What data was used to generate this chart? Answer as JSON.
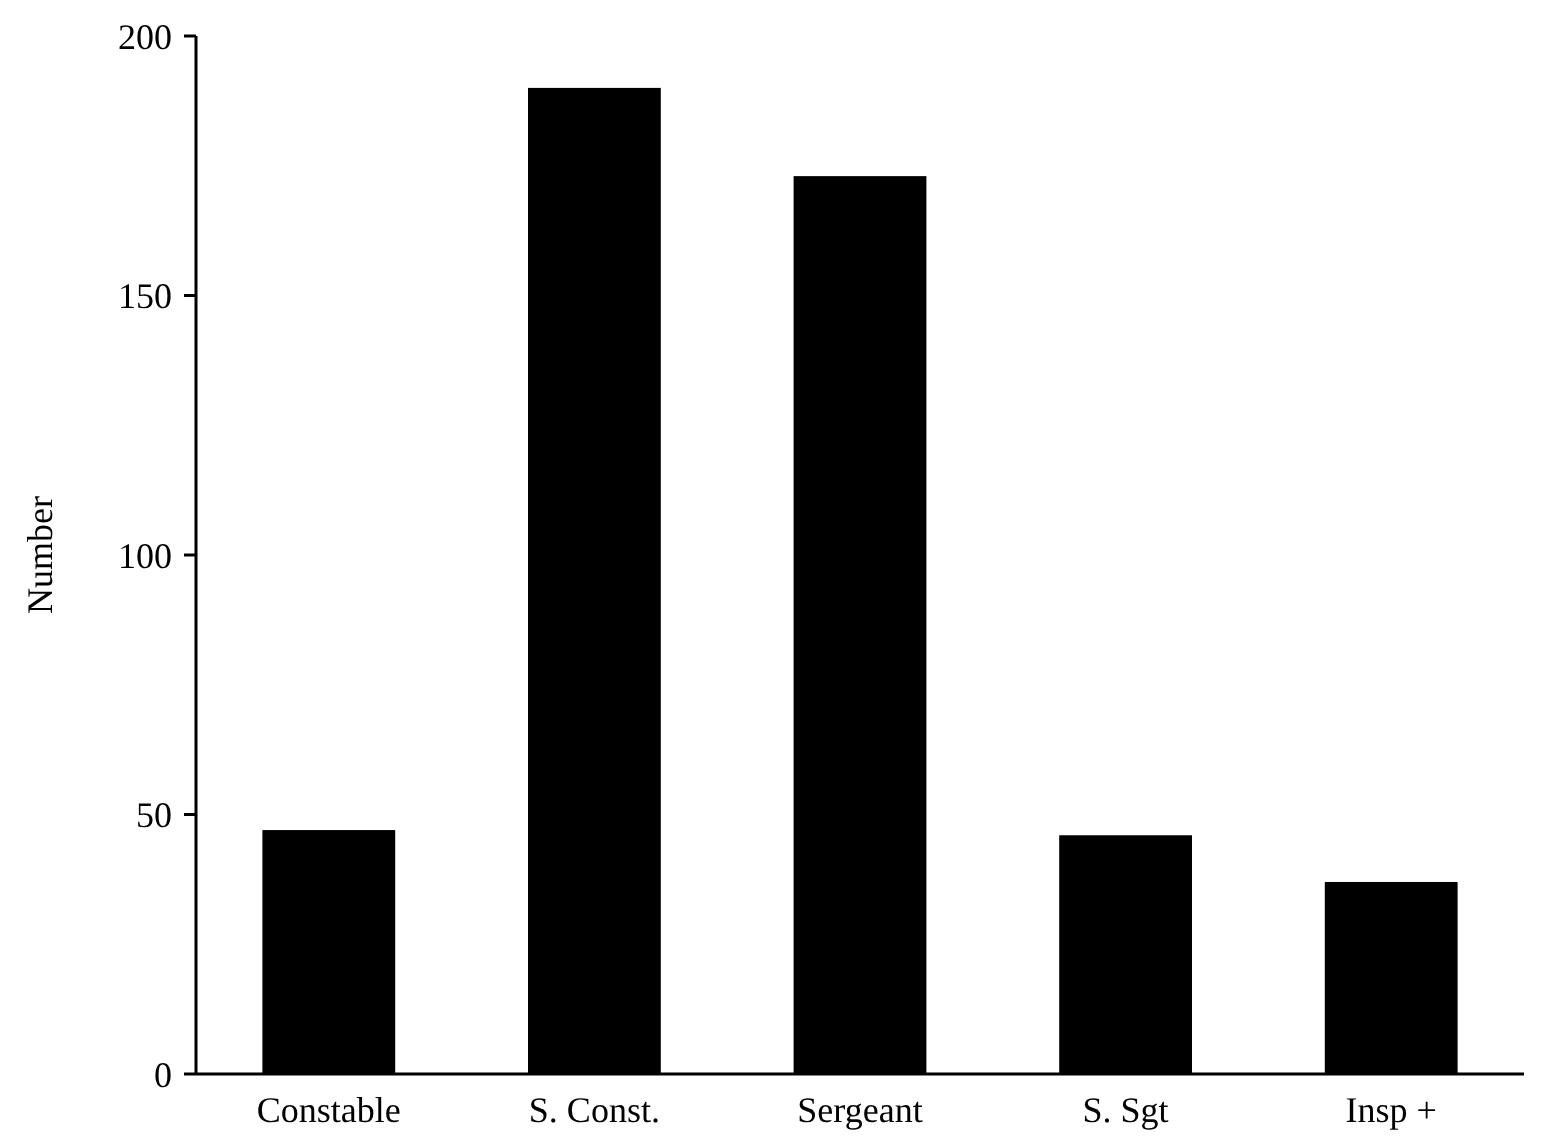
{
  "chart_data": {
    "type": "bar",
    "ylabel": "Number",
    "categories": [
      "Constable",
      "S. Const.",
      "Sergeant",
      "S. Sgt",
      "Insp +"
    ],
    "values": [
      47,
      190,
      173,
      46,
      37
    ],
    "color": "#000000",
    "ylim": [
      0,
      200
    ],
    "yticks": [
      0,
      50,
      100,
      150,
      200
    ],
    "grid": false
  }
}
